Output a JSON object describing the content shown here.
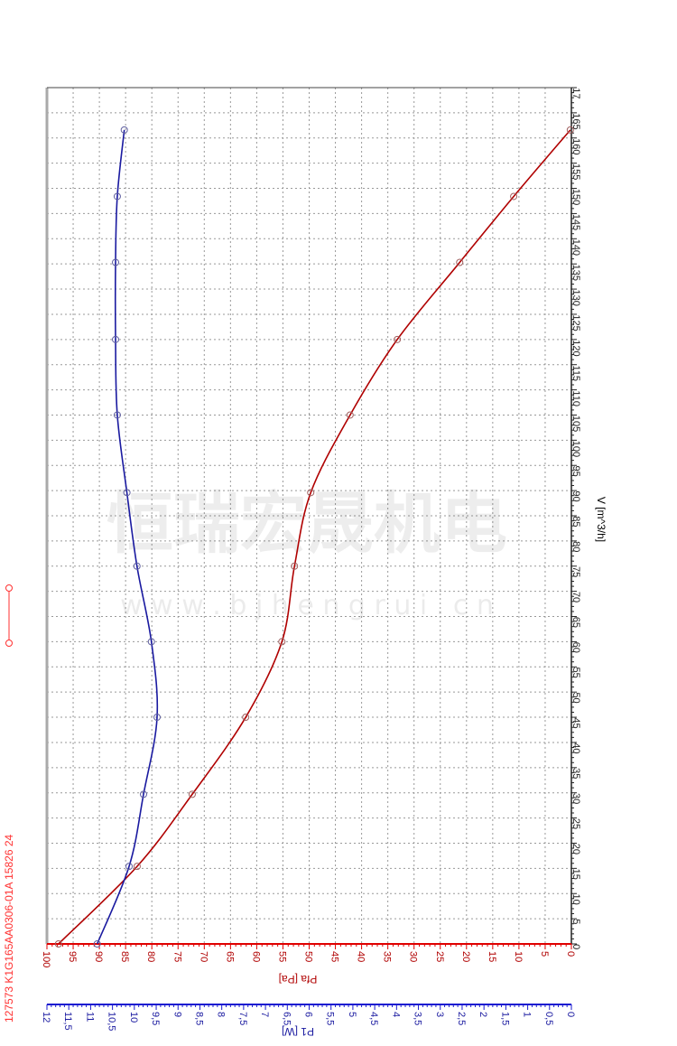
{
  "header_label": "127573  K1G165AA0306-01A   15826 24",
  "watermark": {
    "main": "恒瑞宏晟机电",
    "url": "w w w . b j h e n g r u i . c n"
  },
  "colors": {
    "pfa": "#b00000",
    "p1": "#1a1aa0",
    "pfa_axis": "#e00000",
    "p1_axis": "#1a1ad0",
    "legend": "#ff3030"
  },
  "chart_data": {
    "type": "line",
    "orientation": "rotated 90° clockwise",
    "grid": true,
    "x": {
      "label": "V [m^3/h]",
      "range": [
        0,
        170
      ],
      "ticks": [
        "0",
        "5",
        "10",
        "15",
        "20",
        "25",
        "30",
        "35",
        "40",
        "45",
        "50",
        "55",
        "60",
        "65",
        "70",
        "75",
        "80",
        "85",
        "90",
        "95",
        "100",
        "105",
        "110",
        "115",
        "120",
        "125",
        "130",
        "135",
        "140",
        "145",
        "150",
        "155",
        "160",
        "165",
        "17"
      ]
    },
    "y_left": {
      "label": "Pfa [Pa]",
      "range": [
        0,
        100
      ],
      "ticks": [
        "0",
        "5",
        "10",
        "15",
        "20",
        "25",
        "30",
        "35",
        "40",
        "45",
        "50",
        "55",
        "60",
        "65",
        "70",
        "75",
        "80",
        "85",
        "90",
        "95",
        "100"
      ]
    },
    "y_right": {
      "label": "P1 [W]",
      "range": [
        0,
        12
      ],
      "ticks": [
        "0",
        "0,5",
        "1",
        "1,5",
        "2",
        "2,5",
        "3",
        "3,5",
        "4",
        "4,5",
        "5",
        "5,5",
        "6",
        "6,5",
        "7",
        "7,5",
        "8",
        "8,5",
        "9",
        "9,5",
        "10",
        "10,5",
        "11",
        "11,5",
        "12"
      ]
    },
    "series": [
      {
        "name": "Pfa [Pa]",
        "axis": "y_left",
        "x": [
          0,
          15.4,
          29.7,
          45,
          60,
          75,
          89.6,
          105,
          120,
          135.3,
          148.4,
          161.6
        ],
        "y": [
          97.8,
          82.8,
          72.3,
          62.1,
          55.2,
          52.8,
          49.7,
          42.2,
          33.2,
          21.3,
          11.0,
          0.2
        ]
      },
      {
        "name": "P1 [W]",
        "axis": "y_right",
        "x": [
          0,
          15.4,
          29.7,
          45,
          60,
          75,
          89.6,
          105,
          120,
          135.3,
          148.4,
          161.6
        ],
        "y": [
          10.85,
          10.12,
          9.79,
          9.48,
          9.61,
          9.94,
          10.17,
          10.39,
          10.43,
          10.43,
          10.39,
          10.23
        ]
      }
    ]
  }
}
